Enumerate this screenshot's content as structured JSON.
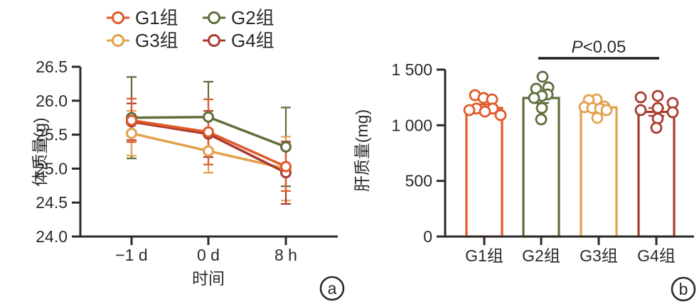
{
  "figure": {
    "background": "#ffffff",
    "ink_color": "#2b2a28",
    "bracket_color": "#1f1e1c"
  },
  "chart_data": [
    {
      "type": "line",
      "panel_label": "a",
      "xlabel": "时间",
      "ylabel": "体质量(g)",
      "x_categories": [
        "−1 d",
        "0 d",
        "8 h"
      ],
      "ylim": [
        24.0,
        26.5
      ],
      "y_ticks": [
        26.5,
        26.0,
        25.5,
        25.0,
        24.5,
        24.0
      ],
      "y_tick_labels": [
        "26.5",
        "26.0",
        "25.5",
        "25.0",
        "24.5",
        "24.0"
      ],
      "grid": false,
      "legend_position": "top",
      "series": [
        {
          "name": "G1组",
          "color": "#E05A2B",
          "values": [
            25.71,
            25.54,
            25.03
          ],
          "errors": [
            0.32,
            0.48,
            0.36
          ]
        },
        {
          "name": "G2组",
          "color": "#5F6E3B",
          "values": [
            25.75,
            25.76,
            25.32
          ],
          "errors": [
            0.6,
            0.52,
            0.58
          ]
        },
        {
          "name": "G3组",
          "color": "#E2A14C",
          "values": [
            25.52,
            25.26,
            25.0
          ],
          "errors": [
            0.33,
            0.32,
            0.47
          ]
        },
        {
          "name": "G4组",
          "color": "#A93B2F",
          "values": [
            25.69,
            25.51,
            24.94
          ],
          "errors": [
            0.27,
            0.34,
            0.46
          ]
        }
      ]
    },
    {
      "type": "bar",
      "panel_label": "b",
      "ylabel": "肝质量(mg)",
      "categories": [
        "G1组",
        "G2组",
        "G3组",
        "G4组"
      ],
      "ylim": [
        0,
        1500
      ],
      "y_ticks": [
        1500,
        1000,
        500,
        0
      ],
      "y_tick_labels": [
        "1 500",
        "1 000",
        "500",
        "0"
      ],
      "grid": false,
      "bars": [
        {
          "name": "G1组",
          "color": "#E05A2B",
          "mean": 1155,
          "sem": 32,
          "points": [
            [
              -13,
              1270
            ],
            [
              -1,
              1245
            ],
            [
              11,
              1232
            ],
            [
              -11,
              1150
            ],
            [
              12,
              1150
            ],
            [
              -21,
              1136
            ],
            [
              1,
              1123
            ],
            [
              23,
              1091
            ]
          ]
        },
        {
          "name": "G2组",
          "color": "#5F6E3B",
          "mean": 1245,
          "sem": 45,
          "points": [
            [
              2,
              1436
            ],
            [
              10,
              1340
            ],
            [
              -7,
              1328
            ],
            [
              9,
              1277
            ],
            [
              1,
              1264
            ],
            [
              -10,
              1245
            ],
            [
              1,
              1155
            ],
            [
              0,
              1053
            ]
          ]
        },
        {
          "name": "G3组",
          "color": "#E2A14C",
          "mean": 1160,
          "sem": 28,
          "points": [
            [
              -3,
              1232
            ],
            [
              -14,
              1226
            ],
            [
              8,
              1168
            ],
            [
              -20,
              1162
            ],
            [
              -9,
              1155
            ],
            [
              2,
              1149
            ],
            [
              11,
              1136
            ],
            [
              -2,
              1066
            ]
          ]
        },
        {
          "name": "G4组",
          "color": "#A93B2F",
          "mean": 1120,
          "sem": 35,
          "points": [
            [
              2,
              1264
            ],
            [
              -22,
              1251
            ],
            [
              23,
              1200
            ],
            [
              2,
              1155
            ],
            [
              -22,
              1136
            ],
            [
              23,
              1117
            ],
            [
              2,
              1060
            ],
            [
              0,
              977
            ]
          ]
        }
      ],
      "significance": {
        "label": "P<0.05",
        "from": "G2组",
        "to": "G4组"
      }
    }
  ]
}
